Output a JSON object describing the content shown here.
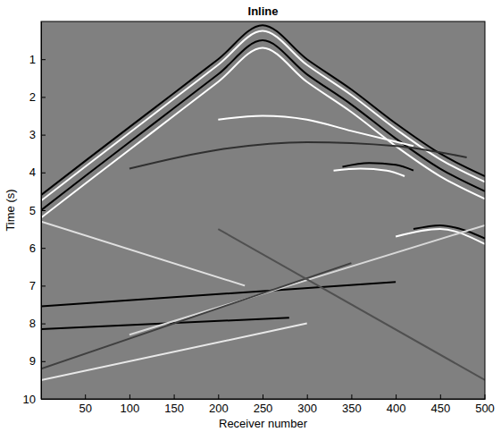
{
  "chart_data": {
    "type": "line",
    "title": "Inline",
    "x_label": "Receiver number",
    "y_label": "Time (s)",
    "xlim": [
      0.5,
      500.5
    ],
    "ylim": [
      0,
      10
    ],
    "xticks": [
      50,
      100,
      150,
      200,
      250,
      300,
      350,
      400,
      450,
      500
    ],
    "yticks": [
      1,
      2,
      3,
      4,
      5,
      6,
      7,
      8,
      9,
      10
    ],
    "grid": false,
    "series": [
      {
        "color": "#000000",
        "x": [
          0.5,
          50,
          100,
          150,
          200,
          250,
          300,
          350,
          400,
          450,
          500.5
        ],
        "values": [
          4.6,
          3.7,
          2.8,
          1.9,
          1.0,
          0.1,
          1.0,
          1.8,
          2.7,
          3.5,
          4.1
        ]
      },
      {
        "color": "#ffffff",
        "x": [
          0.5,
          50,
          100,
          150,
          200,
          250,
          300,
          350,
          400,
          450,
          500.5
        ],
        "values": [
          4.75,
          3.85,
          2.95,
          2.05,
          1.15,
          0.25,
          1.15,
          1.95,
          2.85,
          3.65,
          4.25
        ]
      },
      {
        "color": "#000000",
        "x": [
          0.5,
          50,
          100,
          150,
          200,
          250,
          300,
          350,
          400,
          450,
          500.5
        ],
        "values": [
          5.0,
          4.1,
          3.2,
          2.3,
          1.4,
          0.5,
          1.4,
          2.2,
          3.1,
          3.9,
          4.5
        ]
      },
      {
        "color": "#ffffff",
        "x": [
          0.5,
          50,
          100,
          150,
          200,
          250,
          300,
          350,
          400,
          450,
          500.5
        ],
        "values": [
          5.2,
          4.3,
          3.4,
          2.5,
          1.6,
          0.7,
          1.6,
          2.4,
          3.3,
          4.1,
          4.7
        ]
      },
      {
        "color": "#ffffff",
        "x": [
          200,
          250,
          300,
          350,
          420
        ],
        "values": [
          2.6,
          2.5,
          2.6,
          2.9,
          3.3
        ]
      },
      {
        "color": "#303030",
        "x": [
          100,
          200,
          300,
          400,
          480
        ],
        "values": [
          3.9,
          3.4,
          3.2,
          3.3,
          3.6
        ]
      },
      {
        "color": "#ffffff",
        "x": [
          330,
          360,
          390,
          410
        ],
        "values": [
          3.95,
          3.9,
          3.95,
          4.1
        ]
      },
      {
        "color": "#000000",
        "x": [
          340,
          370,
          400,
          420
        ],
        "values": [
          3.85,
          3.75,
          3.8,
          3.95
        ]
      },
      {
        "color": "#000000",
        "x": [
          420,
          450,
          480,
          500.5
        ],
        "values": [
          5.5,
          5.4,
          5.55,
          5.75
        ]
      },
      {
        "color": "#ffffff",
        "x": [
          400,
          450,
          500.5
        ],
        "values": [
          5.7,
          5.5,
          5.9
        ]
      },
      {
        "color": "#000000",
        "x": [
          0.5,
          400
        ],
        "values": [
          7.55,
          6.9
        ]
      },
      {
        "color": "#000000",
        "x": [
          0.5,
          280
        ],
        "values": [
          8.15,
          7.85
        ]
      },
      {
        "color": "#e0e0e0",
        "x": [
          0.5,
          230
        ],
        "values": [
          5.3,
          7.0
        ]
      },
      {
        "color": "#d8d8d8",
        "x": [
          100,
          500.5
        ],
        "values": [
          8.3,
          5.4
        ]
      },
      {
        "color": "#404040",
        "x": [
          0.5,
          350
        ],
        "values": [
          9.2,
          6.4
        ]
      },
      {
        "color": "#505050",
        "x": [
          200,
          500.5
        ],
        "values": [
          5.5,
          9.5
        ]
      },
      {
        "color": "#e8e8e8",
        "x": [
          0.5,
          300
        ],
        "values": [
          9.5,
          8.0
        ]
      }
    ]
  }
}
